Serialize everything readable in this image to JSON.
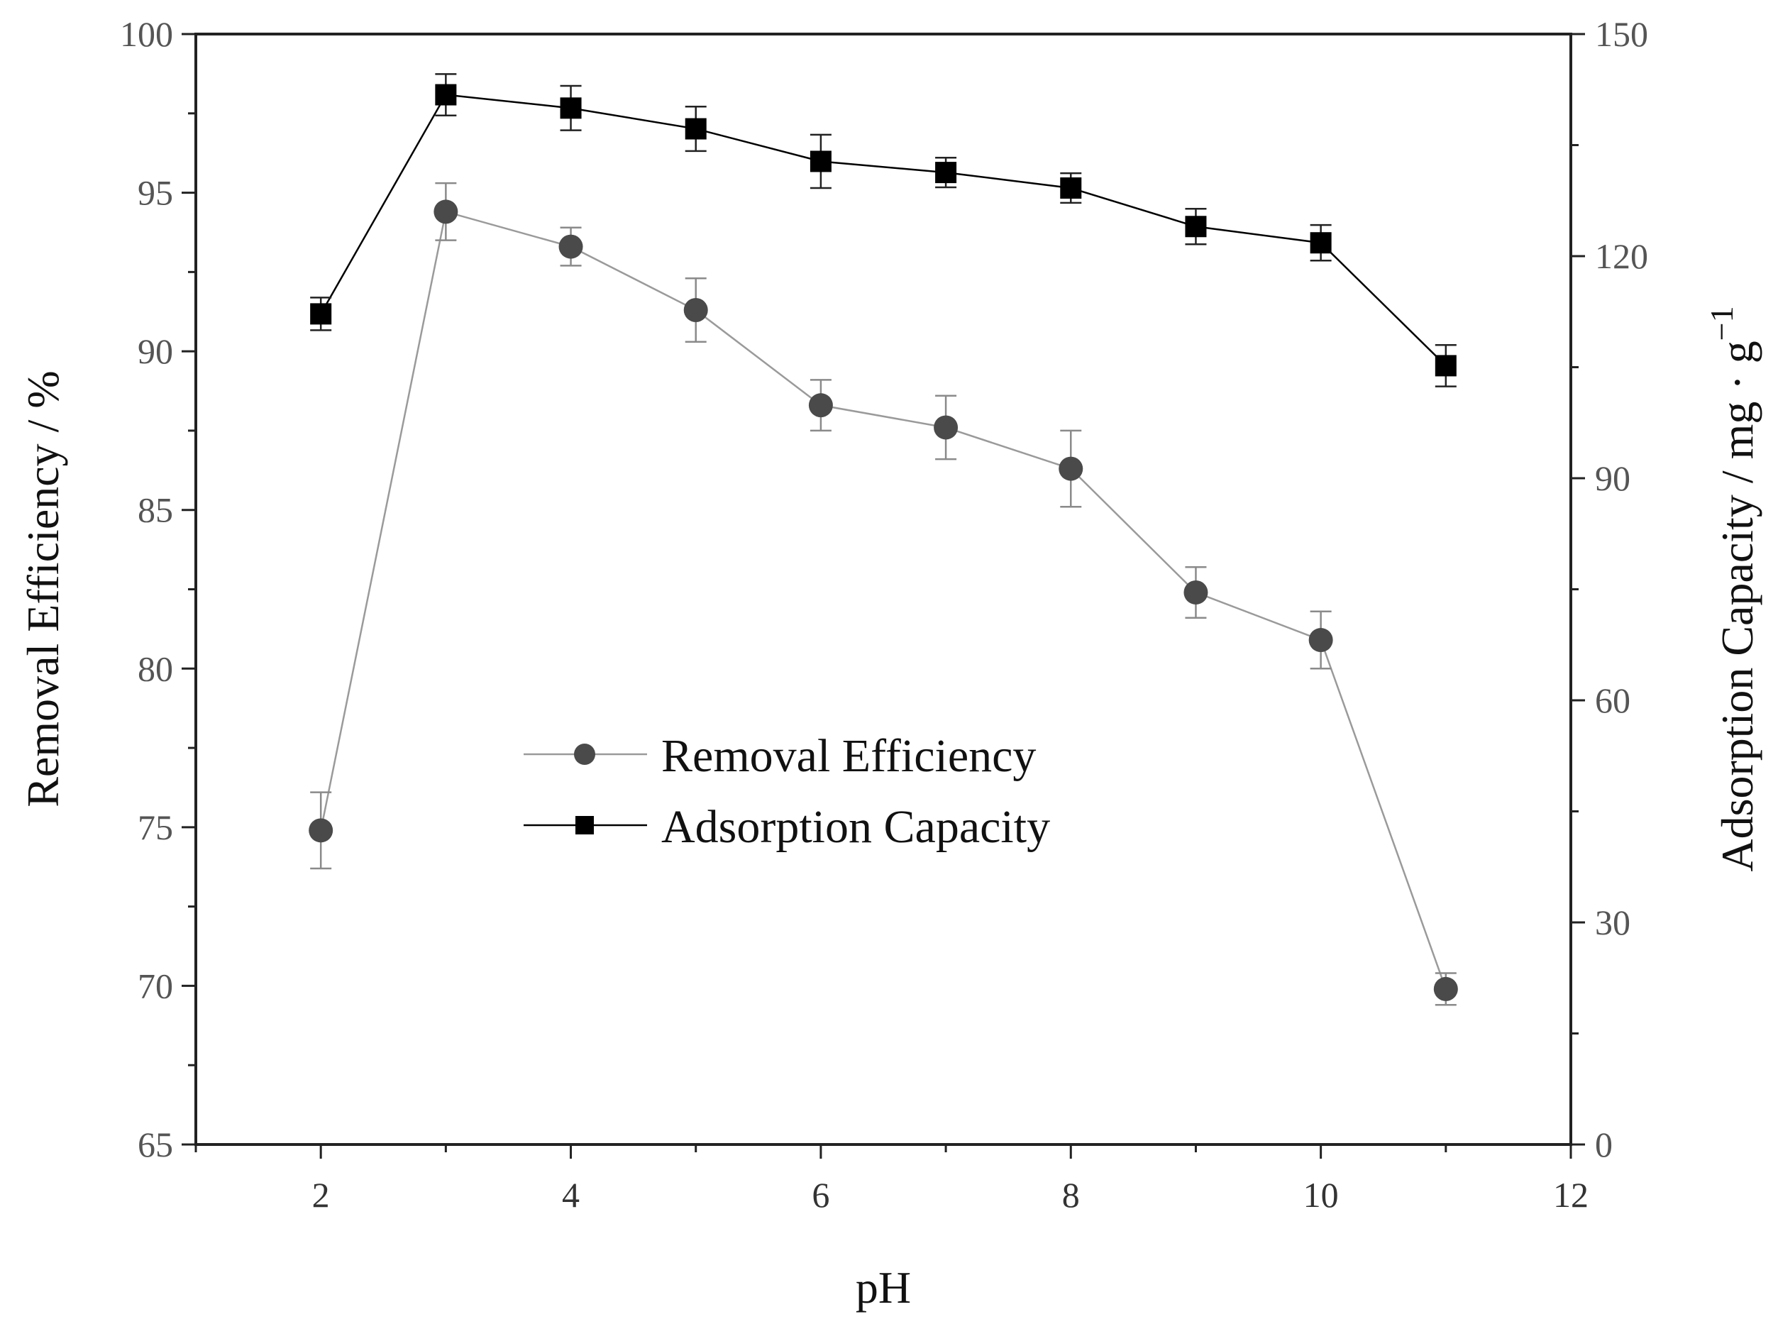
{
  "chart_data": {
    "type": "line",
    "title": "",
    "xlabel": "pH",
    "ylabel": "Removal Efficiency / %",
    "ylabel_right": "Adsorption Capacity / mg · g",
    "ylabel_right_exponent": "−1",
    "xlim": [
      1,
      12
    ],
    "ylim": [
      65,
      100
    ],
    "ylim_right": [
      0,
      150
    ],
    "x_ticks": [
      2,
      4,
      6,
      8,
      10,
      12
    ],
    "y_ticks": [
      65,
      70,
      75,
      80,
      85,
      90,
      95,
      100
    ],
    "y_ticks_right": [
      0,
      30,
      60,
      90,
      120,
      150
    ],
    "x": [
      2,
      3,
      4,
      5,
      6,
      7,
      8,
      9,
      10,
      11
    ],
    "series": [
      {
        "name": "Removal Efficiency",
        "axis": "left",
        "marker": "circle",
        "color": "#4a4a4a",
        "line_color": "#9a9a9a",
        "values": [
          74.9,
          94.4,
          93.3,
          91.3,
          88.3,
          87.6,
          86.3,
          82.4,
          80.9,
          69.9
        ],
        "errors": [
          1.2,
          0.9,
          0.6,
          1.0,
          0.8,
          1.0,
          1.2,
          0.8,
          0.9,
          0.5
        ]
      },
      {
        "name": "Adsorption Capacity",
        "axis": "right",
        "marker": "square",
        "color": "#000000",
        "line_color": "#000000",
        "values": [
          112.2,
          141.8,
          140.0,
          137.2,
          132.8,
          131.3,
          129.2,
          124.0,
          121.8,
          105.2
        ],
        "errors": [
          2.2,
          2.8,
          3.0,
          3.0,
          3.6,
          2.0,
          2.0,
          2.4,
          2.4,
          2.8
        ]
      }
    ],
    "legend": {
      "placement": "center-left",
      "entries": [
        "Removal Efficiency",
        "Adsorption Capacity"
      ]
    }
  }
}
